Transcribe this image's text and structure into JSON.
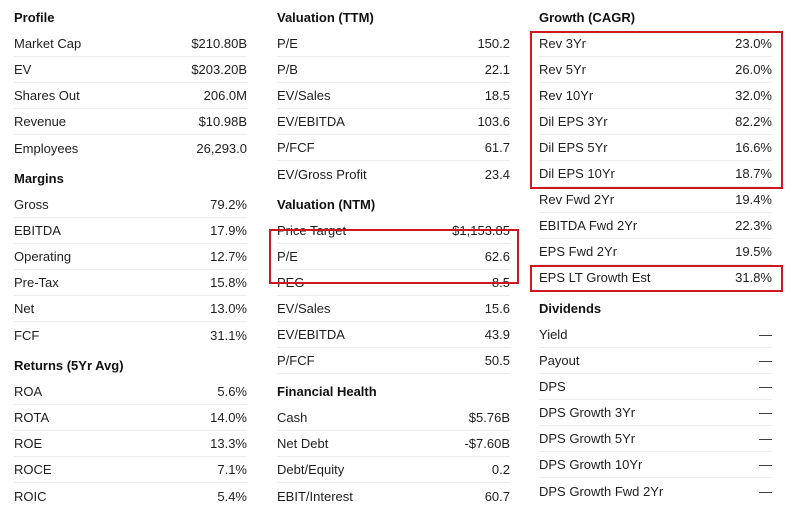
{
  "profile": {
    "title": "Profile",
    "rows": [
      {
        "label": "Market Cap",
        "value": "$210.80B"
      },
      {
        "label": "EV",
        "value": "$203.20B"
      },
      {
        "label": "Shares Out",
        "value": "206.0M"
      },
      {
        "label": "Revenue",
        "value": "$10.98B"
      },
      {
        "label": "Employees",
        "value": "26,293.0"
      }
    ]
  },
  "margins": {
    "title": "Margins",
    "rows": [
      {
        "label": "Gross",
        "value": "79.2%"
      },
      {
        "label": "EBITDA",
        "value": "17.9%"
      },
      {
        "label": "Operating",
        "value": "12.7%"
      },
      {
        "label": "Pre-Tax",
        "value": "15.8%"
      },
      {
        "label": "Net",
        "value": "13.0%"
      },
      {
        "label": "FCF",
        "value": "31.1%"
      }
    ]
  },
  "returns": {
    "title": "Returns (5Yr Avg)",
    "rows": [
      {
        "label": "ROA",
        "value": "5.6%"
      },
      {
        "label": "ROTA",
        "value": "14.0%"
      },
      {
        "label": "ROE",
        "value": "13.3%"
      },
      {
        "label": "ROCE",
        "value": "7.1%"
      },
      {
        "label": "ROIC",
        "value": "5.4%"
      }
    ]
  },
  "valuation_ttm": {
    "title": "Valuation (TTM)",
    "rows": [
      {
        "label": "P/E",
        "value": "150.2"
      },
      {
        "label": "P/B",
        "value": "22.1"
      },
      {
        "label": "EV/Sales",
        "value": "18.5"
      },
      {
        "label": "EV/EBITDA",
        "value": "103.6"
      },
      {
        "label": "P/FCF",
        "value": "61.7"
      },
      {
        "label": "EV/Gross Profit",
        "value": "23.4"
      }
    ]
  },
  "valuation_ntm": {
    "title": "Valuation (NTM)",
    "rows": [
      {
        "label": "Price Target",
        "value": "$1,153.85"
      },
      {
        "label": "P/E",
        "value": "62.6"
      },
      {
        "label": "PEG",
        "value": "8.5"
      },
      {
        "label": "EV/Sales",
        "value": "15.6"
      },
      {
        "label": "EV/EBITDA",
        "value": "43.9"
      },
      {
        "label": "P/FCF",
        "value": "50.5"
      }
    ]
  },
  "financial_health": {
    "title": "Financial Health",
    "rows": [
      {
        "label": "Cash",
        "value": "$5.76B"
      },
      {
        "label": "Net Debt",
        "value": "-$7.60B"
      },
      {
        "label": "Debt/Equity",
        "value": "0.2"
      },
      {
        "label": "EBIT/Interest",
        "value": "60.7"
      }
    ]
  },
  "growth": {
    "title": "Growth (CAGR)",
    "rows": [
      {
        "label": "Rev 3Yr",
        "value": "23.0%"
      },
      {
        "label": "Rev 5Yr",
        "value": "26.0%"
      },
      {
        "label": "Rev 10Yr",
        "value": "32.0%"
      },
      {
        "label": "Dil EPS 3Yr",
        "value": "82.2%"
      },
      {
        "label": "Dil EPS 5Yr",
        "value": "16.6%"
      },
      {
        "label": "Dil EPS 10Yr",
        "value": "18.7%"
      },
      {
        "label": "Rev Fwd 2Yr",
        "value": "19.4%"
      },
      {
        "label": "EBITDA Fwd 2Yr",
        "value": "22.3%"
      },
      {
        "label": "EPS Fwd 2Yr",
        "value": "19.5%"
      },
      {
        "label": "EPS LT Growth Est",
        "value": "31.8%"
      }
    ]
  },
  "dividends": {
    "title": "Dividends",
    "rows": [
      {
        "label": "Yield",
        "value": "—"
      },
      {
        "label": "Payout",
        "value": "—"
      },
      {
        "label": "DPS",
        "value": "—"
      },
      {
        "label": "DPS Growth 3Yr",
        "value": "—"
      },
      {
        "label": "DPS Growth 5Yr",
        "value": "—"
      },
      {
        "label": "DPS Growth 10Yr",
        "value": "—"
      },
      {
        "label": "DPS Growth Fwd 2Yr",
        "value": "—"
      }
    ]
  },
  "highlight_color": "#d0161f"
}
